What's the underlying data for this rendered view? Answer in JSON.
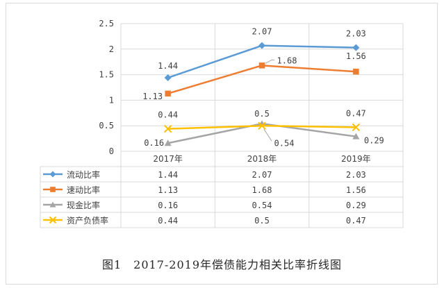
{
  "chart_data": {
    "type": "line",
    "categories": [
      "2017年",
      "2018年",
      "2019年"
    ],
    "ylim": [
      0,
      2.5
    ],
    "yticks": [
      "0",
      "0.5",
      "1",
      "1.5",
      "2",
      "2.5"
    ],
    "grid": true,
    "legend": "data-table",
    "series": [
      {
        "name": "流动比率",
        "values": [
          1.44,
          2.07,
          2.03
        ],
        "labels": [
          "1.44",
          "2.07",
          "2.03"
        ],
        "table": [
          "1.44",
          "2.07",
          "2.03"
        ],
        "color": "#5B9BD5",
        "marker": "diamond"
      },
      {
        "name": "速动比率",
        "values": [
          1.13,
          1.68,
          1.56
        ],
        "labels": [
          "1.13",
          "1.68",
          "1.56"
        ],
        "table": [
          "1.13",
          "1.68",
          "1.56"
        ],
        "color": "#ED7D31",
        "marker": "square"
      },
      {
        "name": "现金比率",
        "values": [
          0.16,
          0.54,
          0.29
        ],
        "labels": [
          "0.16",
          "0.54",
          "0.29"
        ],
        "table": [
          "0.16",
          "0.54",
          "0.29"
        ],
        "color": "#A5A5A5",
        "marker": "triangle"
      },
      {
        "name": "资产负债率",
        "values": [
          0.44,
          0.5,
          0.47
        ],
        "labels": [
          "0.44",
          "0.5",
          "0.47"
        ],
        "table": [
          "0.44",
          "0.5",
          "0.47"
        ],
        "color": "#FFC000",
        "marker": "x"
      }
    ]
  },
  "caption": "图1　2017-2019年偿债能力相关比率折线图"
}
